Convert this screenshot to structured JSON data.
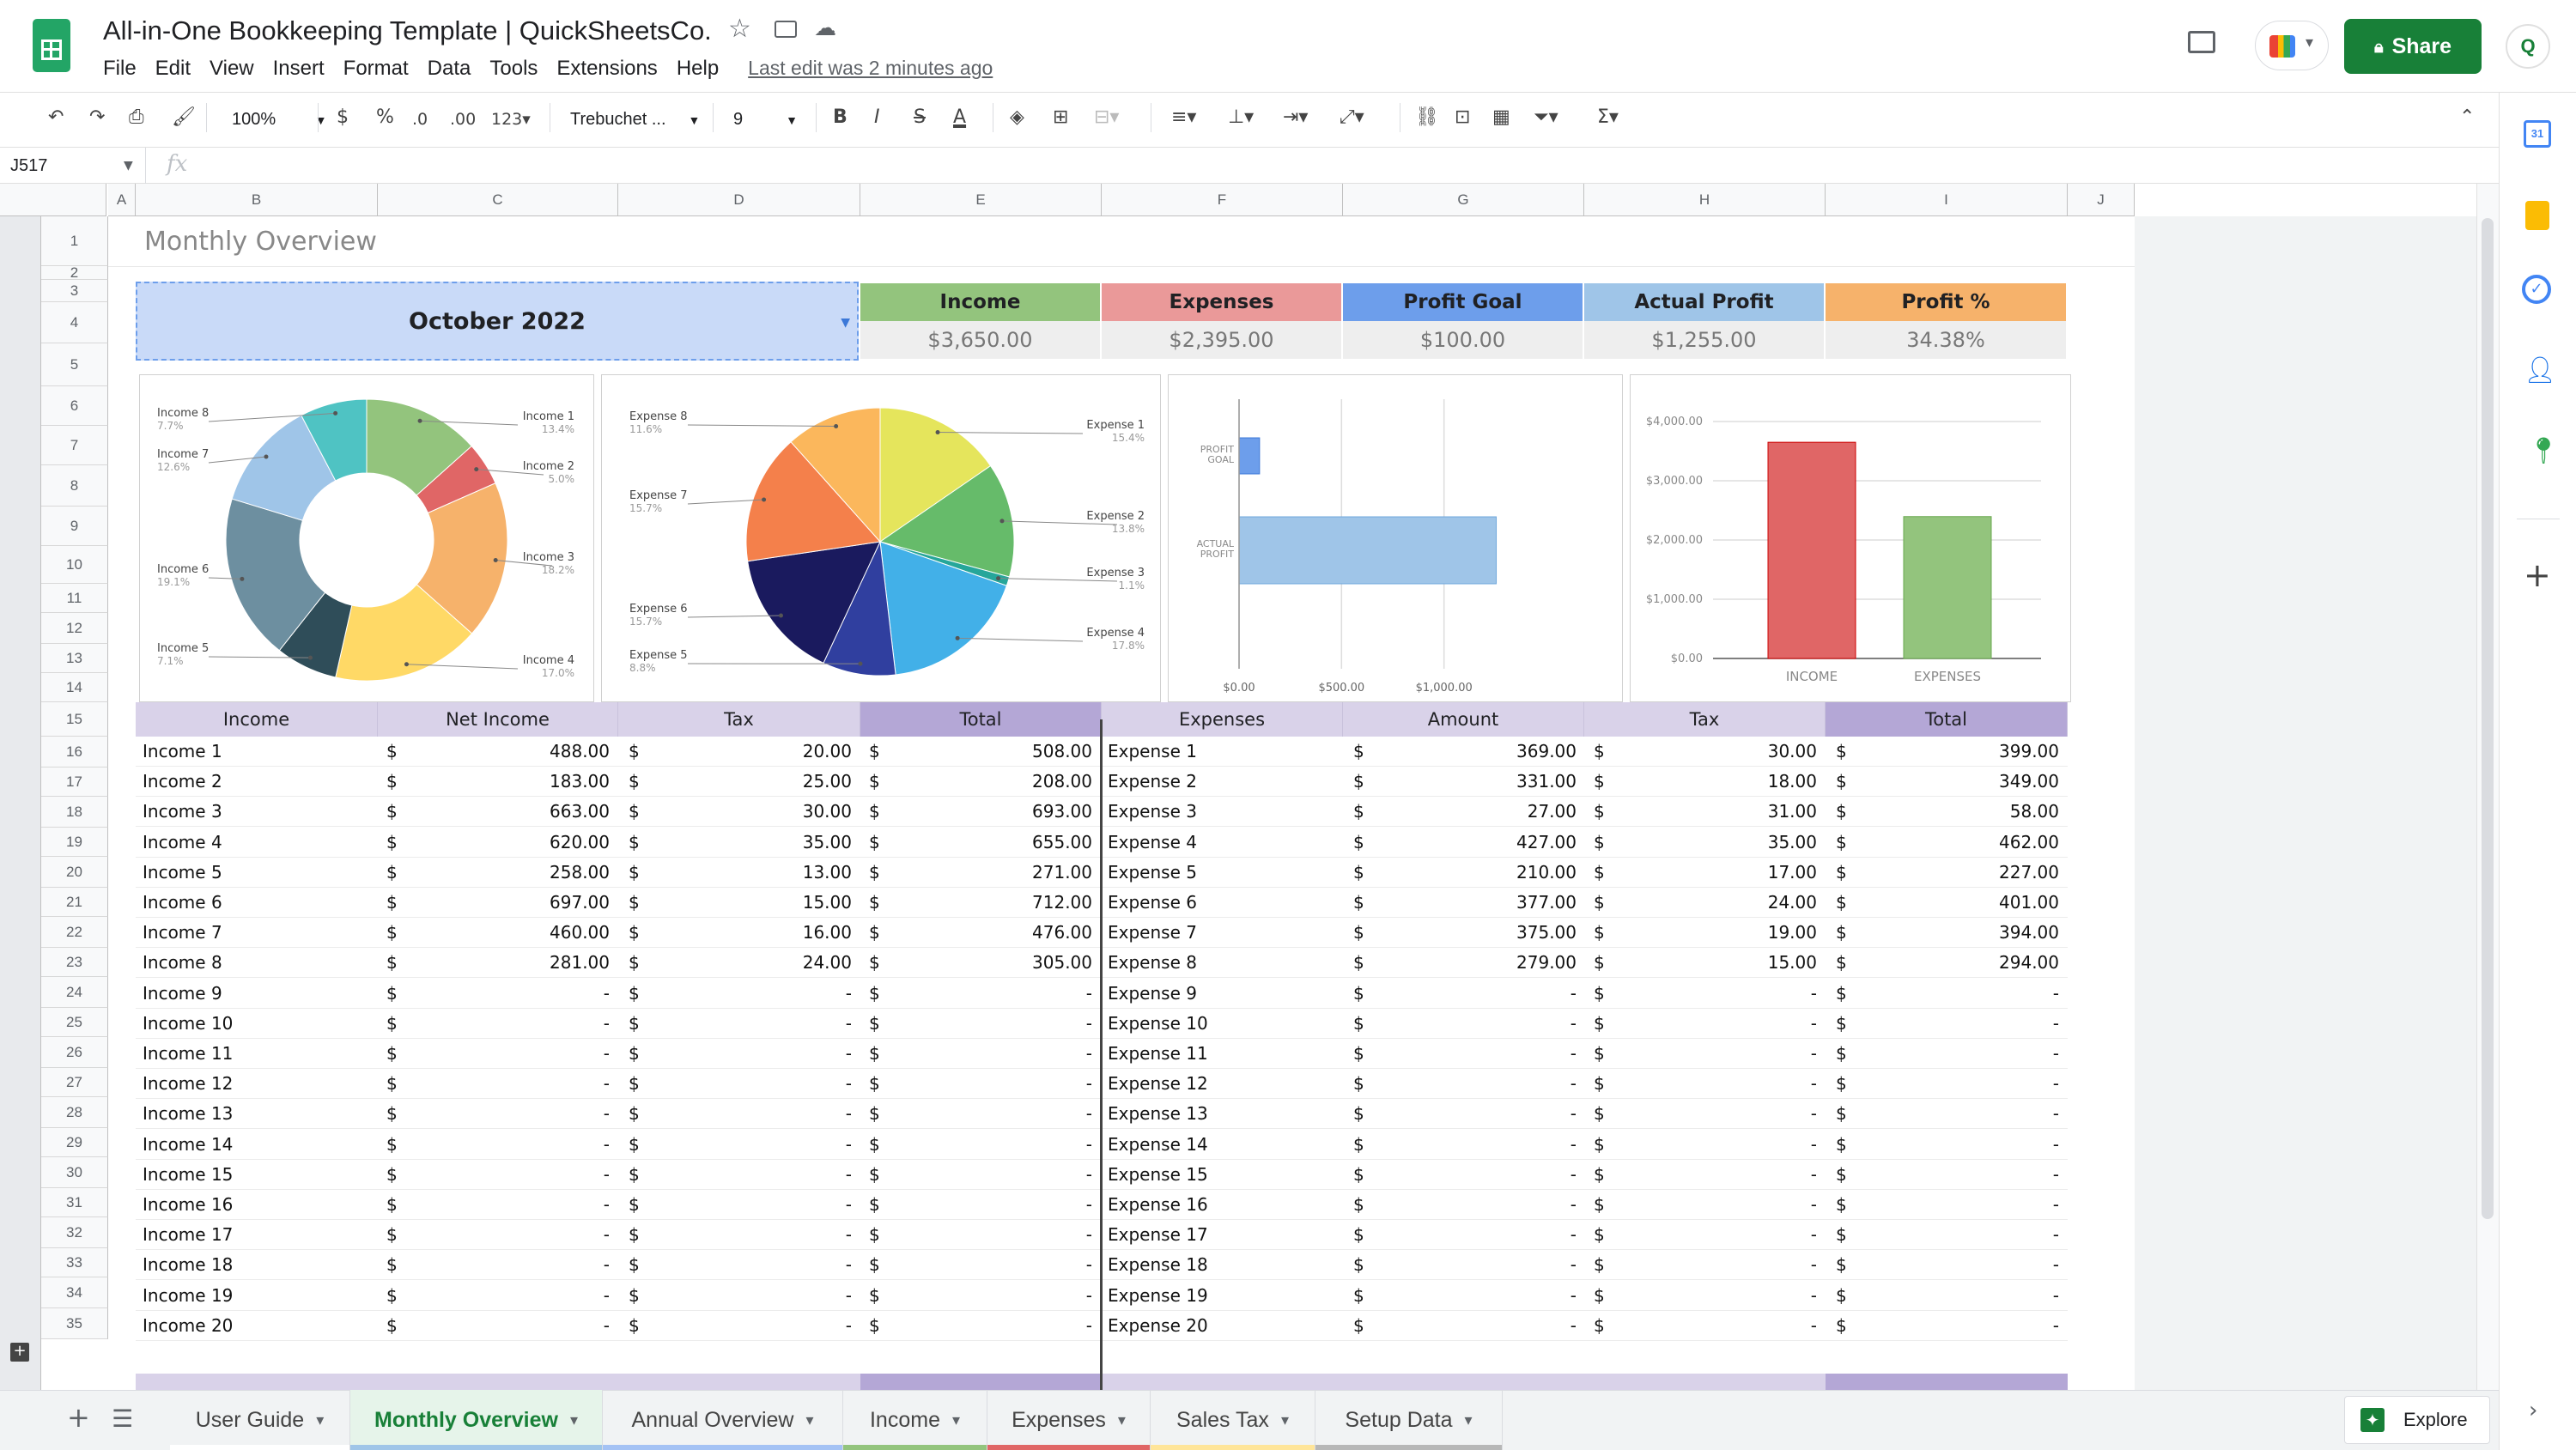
{
  "doc": {
    "title": "All-in-One Bookkeeping Template | QuickSheetsCo.",
    "last_edit": "Last edit was 2 minutes ago",
    "menus": [
      "File",
      "Edit",
      "View",
      "Insert",
      "Format",
      "Data",
      "Tools",
      "Extensions",
      "Help"
    ],
    "share_label": "Share",
    "avatar_text": "Q"
  },
  "toolbar": {
    "zoom": "100%",
    "currency": "$",
    "percent": "%",
    "dec_less": ".0",
    "dec_more": ".00",
    "more_formats": "123",
    "font": "Trebuchet ...",
    "font_size": "9"
  },
  "formula": {
    "name_box": "J517",
    "fx": "fx",
    "value": ""
  },
  "columns": [
    "A",
    "B",
    "C",
    "D",
    "E",
    "F",
    "G",
    "H",
    "I",
    "J"
  ],
  "rows": [
    "1",
    "2",
    "3",
    "4",
    "5",
    "6",
    "7",
    "8",
    "9",
    "10",
    "11",
    "12",
    "13",
    "14",
    "15",
    "16",
    "17",
    "18",
    "19",
    "20",
    "21",
    "22",
    "23",
    "24",
    "25",
    "26",
    "27",
    "28",
    "29",
    "30",
    "31",
    "32",
    "33",
    "34",
    "35"
  ],
  "sheet": {
    "header_title": "Monthly Overview",
    "month_selector": "October 2022",
    "kpis": [
      {
        "label": "Income",
        "value": "$3,650.00",
        "color": "#93c47d"
      },
      {
        "label": "Expenses",
        "value": "$2,395.00",
        "color": "#ea9999"
      },
      {
        "label": "Profit Goal",
        "value": "$100.00",
        "color": "#6d9eeb"
      },
      {
        "label": "Actual Profit",
        "value": "$1,255.00",
        "color": "#9fc5e8"
      },
      {
        "label": "Profit %",
        "value": "34.38%",
        "color": "#f6b26b"
      }
    ],
    "table_headers": [
      "Income",
      "Net Income",
      "Tax",
      "Total",
      "Expenses",
      "Amount",
      "Tax",
      "Total"
    ],
    "dollar": "$",
    "income_names": [
      "Income 1",
      "Income 2",
      "Income 3",
      "Income 4",
      "Income 5",
      "Income 6",
      "Income 7",
      "Income 8",
      "Income 9",
      "Income 10",
      "Income 11",
      "Income 12",
      "Income 13",
      "Income 14",
      "Income 15",
      "Income 16",
      "Income 17",
      "Income 18",
      "Income 19",
      "Income 20"
    ],
    "income_net": [
      "488.00",
      "183.00",
      "663.00",
      "620.00",
      "258.00",
      "697.00",
      "460.00",
      "281.00",
      "-",
      "-",
      "-",
      "-",
      "-",
      "-",
      "-",
      "-",
      "-",
      "-",
      "-",
      "-"
    ],
    "income_tax": [
      "20.00",
      "25.00",
      "30.00",
      "35.00",
      "13.00",
      "15.00",
      "16.00",
      "24.00",
      "-",
      "-",
      "-",
      "-",
      "-",
      "-",
      "-",
      "-",
      "-",
      "-",
      "-",
      "-"
    ],
    "income_total": [
      "508.00",
      "208.00",
      "693.00",
      "655.00",
      "271.00",
      "712.00",
      "476.00",
      "305.00",
      "-",
      "-",
      "-",
      "-",
      "-",
      "-",
      "-",
      "-",
      "-",
      "-",
      "-",
      "-"
    ],
    "expense_names": [
      "Expense 1",
      "Expense 2",
      "Expense 3",
      "Expense 4",
      "Expense 5",
      "Expense 6",
      "Expense 7",
      "Expense 8",
      "Expense 9",
      "Expense 10",
      "Expense 11",
      "Expense 12",
      "Expense 13",
      "Expense 14",
      "Expense 15",
      "Expense 16",
      "Expense 17",
      "Expense 18",
      "Expense 19",
      "Expense 20"
    ],
    "expense_amount": [
      "369.00",
      "331.00",
      "27.00",
      "427.00",
      "210.00",
      "377.00",
      "375.00",
      "279.00",
      "-",
      "-",
      "-",
      "-",
      "-",
      "-",
      "-",
      "-",
      "-",
      "-",
      "-",
      "-"
    ],
    "expense_tax": [
      "30.00",
      "18.00",
      "31.00",
      "35.00",
      "17.00",
      "24.00",
      "19.00",
      "15.00",
      "-",
      "-",
      "-",
      "-",
      "-",
      "-",
      "-",
      "-",
      "-",
      "-",
      "-",
      "-"
    ],
    "expense_total": [
      "399.00",
      "349.00",
      "58.00",
      "462.00",
      "227.00",
      "401.00",
      "394.00",
      "294.00",
      "-",
      "-",
      "-",
      "-",
      "-",
      "-",
      "-",
      "-",
      "-",
      "-",
      "-",
      "-"
    ]
  },
  "chart_data": [
    {
      "type": "pie",
      "variant": "donut",
      "labels": [
        "Income 1",
        "Income 2",
        "Income 3",
        "Income 4",
        "Income 5",
        "Income 6",
        "Income 7",
        "Income 8"
      ],
      "percent_labels": [
        "13.4%",
        "5.0%",
        "18.2%",
        "17.0%",
        "7.1%",
        "19.1%",
        "12.6%",
        "7.7%"
      ],
      "values": [
        13.4,
        5.0,
        18.2,
        17.0,
        7.1,
        19.1,
        12.6,
        7.7
      ],
      "colors": [
        "#93c47d",
        "#e06666",
        "#f6b26b",
        "#ffd966",
        "#2f4d59",
        "#6d8fa0",
        "#9fc5e8",
        "#4fc3c3"
      ]
    },
    {
      "type": "pie",
      "labels": [
        "Expense 1",
        "Expense 2",
        "Expense 3",
        "Expense 4",
        "Expense 5",
        "Expense 6",
        "Expense 7",
        "Expense 8"
      ],
      "percent_labels": [
        "15.4%",
        "13.8%",
        "1.1%",
        "17.8%",
        "8.8%",
        "15.7%",
        "15.7%",
        "11.6%"
      ],
      "values": [
        15.4,
        13.8,
        1.1,
        17.8,
        8.8,
        15.7,
        15.7,
        11.6
      ],
      "colors": [
        "#e5e55c",
        "#66bb6a",
        "#26a69a",
        "#42b0e8",
        "#303f9f",
        "#1a1a5e",
        "#f4804b",
        "#fbb75c"
      ]
    },
    {
      "type": "bar",
      "orientation": "horizontal",
      "categories": [
        "PROFIT GOAL",
        "ACTUAL PROFIT"
      ],
      "values": [
        100,
        1255
      ],
      "colors": [
        "#6d9eeb",
        "#9fc5e8"
      ],
      "xlim": [
        0,
        1500
      ],
      "xticks": [
        0,
        500,
        1000
      ],
      "xtick_labels": [
        "$0.00",
        "$500.00",
        "$1,000.00"
      ]
    },
    {
      "type": "bar",
      "categories": [
        "INCOME",
        "EXPENSES"
      ],
      "values": [
        3650,
        2395
      ],
      "colors": [
        "#e06666",
        "#93c47d"
      ],
      "ylim": [
        0,
        4000
      ],
      "yticks": [
        0,
        1000,
        2000,
        3000,
        4000
      ],
      "ytick_labels": [
        "$0.00",
        "$1,000.00",
        "$2,000.00",
        "$3,000.00",
        "$4,000.00"
      ]
    }
  ],
  "tabs": [
    {
      "label": "User Guide",
      "active": false,
      "color": "#ffffff"
    },
    {
      "label": "Monthly Overview",
      "active": true,
      "color": "#9fc5e8"
    },
    {
      "label": "Annual Overview",
      "active": false,
      "color": "#a4c2f4"
    },
    {
      "label": "Income",
      "active": false,
      "color": "#93c47d"
    },
    {
      "label": "Expenses",
      "active": false,
      "color": "#e06666"
    },
    {
      "label": "Sales Tax",
      "active": false,
      "color": "#ffe599"
    },
    {
      "label": "Setup Data",
      "active": false,
      "color": "#b7b7b7"
    }
  ],
  "explore_label": "Explore",
  "colors": {
    "brand_green": "#188038",
    "header_purple": "#d9d2e9",
    "header_purple_dark": "#b4a7d6",
    "month_blue": "#c9daf8"
  }
}
